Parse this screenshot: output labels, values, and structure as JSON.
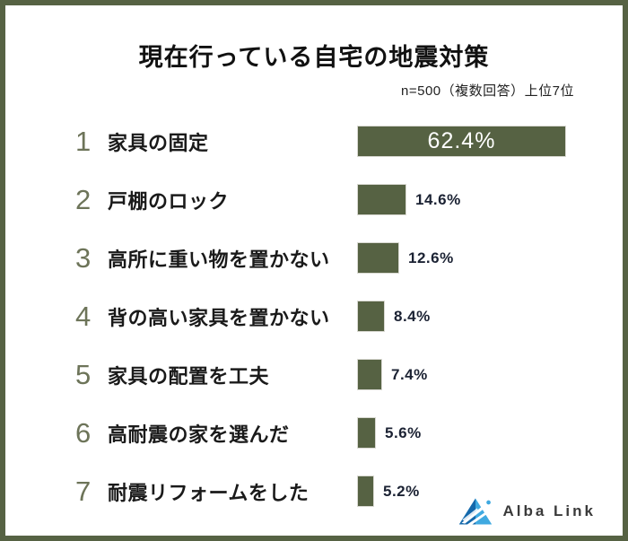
{
  "page": {
    "title": "現在行っている自宅の地震対策",
    "note": "n=500（複数回答）上位7位",
    "border_color": "#566243"
  },
  "chart_data": {
    "type": "bar",
    "orientation": "horizontal",
    "title": "現在行っている自宅の地震対策",
    "subtitle": "n=500（複数回答）上位7位",
    "categories": [
      "家具の固定",
      "戸棚のロック",
      "高所に重い物を置かない",
      "背の高い家具を置かない",
      "家具の配置を工夫",
      "高耐震の家を選んだ",
      "耐震リフォームをした"
    ],
    "values": [
      62.4,
      14.6,
      12.6,
      8.4,
      7.4,
      5.6,
      5.2
    ],
    "ranks": [
      1,
      2,
      3,
      4,
      5,
      6,
      7
    ],
    "unit": "%",
    "bar_color": "#566243",
    "rank_color": "#6d7459",
    "xlim": [
      0,
      65
    ],
    "grid": false,
    "legend": false,
    "value_labels": [
      "62.4%",
      "14.6%",
      "12.6%",
      "8.4%",
      "7.4%",
      "5.6%",
      "5.2%"
    ]
  },
  "logo": {
    "text": "Alba Link",
    "icon": "mountain-triangle-logo",
    "color_dark": "#1468ab",
    "color_light": "#3fa9e0"
  }
}
